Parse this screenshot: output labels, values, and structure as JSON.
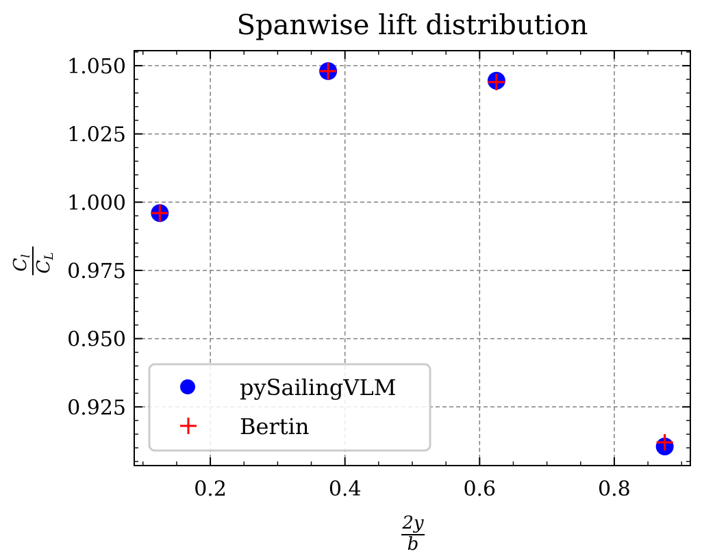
{
  "chart_data": {
    "type": "scatter",
    "title": "Spanwise lift distribution",
    "xlabel": {
      "numerator": "2y",
      "denominator": "b"
    },
    "ylabel": {
      "numerator": "C",
      "numerator_sub": "l",
      "denominator": "C",
      "denominator_sub": "L"
    },
    "xlim": [
      0.087,
      0.913
    ],
    "ylim": [
      0.9035,
      1.0555
    ],
    "x_ticks": [
      0.2,
      0.4,
      0.6,
      0.8
    ],
    "x_tick_labels": [
      "0.2",
      "0.4",
      "0.6",
      "0.8"
    ],
    "y_ticks": [
      0.925,
      0.95,
      0.975,
      1.0,
      1.025,
      1.05
    ],
    "y_tick_labels": [
      "0.925",
      "0.950",
      "0.975",
      "1.000",
      "1.025",
      "1.050"
    ],
    "grid": true,
    "legend_position": "lower-left",
    "series": [
      {
        "name": "pySailingVLM",
        "marker": "circle",
        "color": "#0000ff",
        "x": [
          0.125,
          0.375,
          0.625,
          0.875
        ],
        "y": [
          0.996,
          1.048,
          1.0445,
          0.9105
        ]
      },
      {
        "name": "Bertin",
        "marker": "plus",
        "color": "#ff0000",
        "x": [
          0.125,
          0.375,
          0.625,
          0.875
        ],
        "y": [
          0.996,
          1.048,
          1.044,
          0.912
        ]
      }
    ]
  }
}
